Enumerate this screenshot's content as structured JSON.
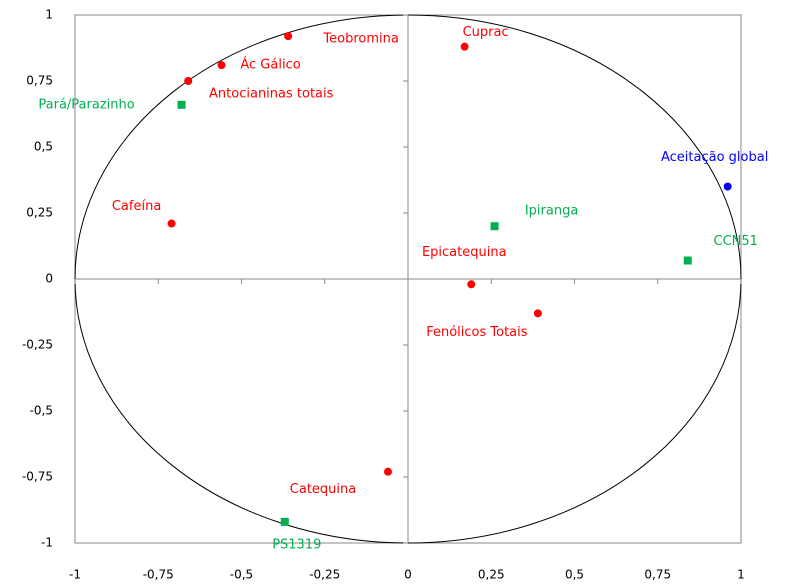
{
  "chart_data": {
    "type": "scatter",
    "xlim": [
      -1,
      1
    ],
    "ylim": [
      -1,
      1
    ],
    "xticks": [
      -1,
      {
        "value": -0.75,
        "label": "-0,75"
      },
      {
        "value": -0.5,
        "label": "-0,5"
      },
      {
        "value": -0.25,
        "label": "-0,25"
      },
      0,
      {
        "value": 0.25,
        "label": "0,25"
      },
      {
        "value": 0.5,
        "label": "0,5"
      },
      {
        "value": 0.75,
        "label": "0,75"
      },
      1
    ],
    "yticks": [
      -1,
      {
        "value": -0.75,
        "label": "-0,75"
      },
      {
        "value": -0.5,
        "label": "-0,5"
      },
      {
        "value": -0.25,
        "label": "-0,25"
      },
      0,
      {
        "value": 0.25,
        "label": "0,25"
      },
      {
        "value": 0.5,
        "label": "0,5"
      },
      {
        "value": 0.75,
        "label": "0,75"
      },
      1
    ],
    "series": [
      {
        "color": "#ff0000",
        "marker": "circle",
        "labels": [
          "Teobromina",
          "Cuprac",
          "Ác Gálico",
          "Antocianinas totais",
          "Cafeína",
          "Epicatequina",
          "Fenólicos Totais",
          "Catequina"
        ],
        "x": [
          -0.36,
          0.17,
          -0.56,
          -0.66,
          -0.71,
          0.19,
          0.39,
          -0.06
        ],
        "values": [
          0.92,
          0.88,
          0.81,
          0.75,
          0.21,
          -0.02,
          -0.13,
          -0.73
        ]
      },
      {
        "color": "#0000ff",
        "marker": "circle",
        "labels": [
          "Aceitação global"
        ],
        "x": [
          0.96
        ],
        "values": [
          0.35
        ]
      },
      {
        "color": "#00b050",
        "marker": "square",
        "labels": [
          "Pará/Parazinho",
          "Ipiranga",
          "CCN51",
          "PS1319"
        ],
        "x": [
          -0.68,
          0.26,
          0.84,
          -0.37
        ],
        "values": [
          0.66,
          0.2,
          0.07,
          -0.92
        ]
      }
    ]
  }
}
